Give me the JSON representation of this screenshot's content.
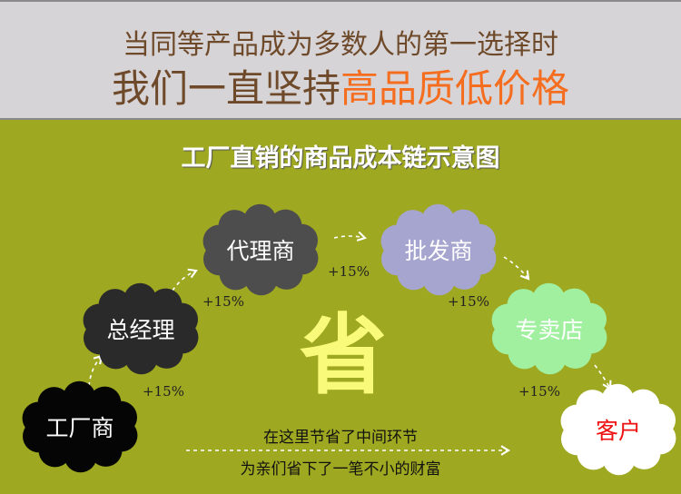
{
  "header": {
    "line1": "当同等产品成为多数人的第一选择时",
    "line2_plain": "我们一直坚持",
    "line2_highlight": "高品质低价格"
  },
  "title": "工厂直销的商品成本链示意图",
  "nodes": [
    {
      "label": "工厂商",
      "fill": "#050505",
      "text_color": "#ffffff"
    },
    {
      "label": "总经理",
      "fill": "#2a2a2a",
      "text_color": "#ffffff"
    },
    {
      "label": "代理商",
      "fill": "#4d4d4d",
      "text_color": "#ffffff"
    },
    {
      "label": "批发商",
      "fill": "#a6a5cf",
      "text_color": "#ffffff"
    },
    {
      "label": "专卖店",
      "fill": "#a0f0a0",
      "text_color": "#ffffff"
    },
    {
      "label": "客户",
      "fill": "#ffffff",
      "text_color": "#ee1111"
    }
  ],
  "markups": [
    "+15%",
    "+15%",
    "+15%",
    "+15%",
    "+15%"
  ],
  "center_char": "省",
  "note_top": "在这里节省了中间环节",
  "note_bottom": "为亲们省下了一笔不小的财富",
  "colors": {
    "header_bg": "#d6d4d7",
    "body_bg": "#9ea820",
    "highlight": "#f56d1f",
    "header_text": "#6e4a2a"
  }
}
